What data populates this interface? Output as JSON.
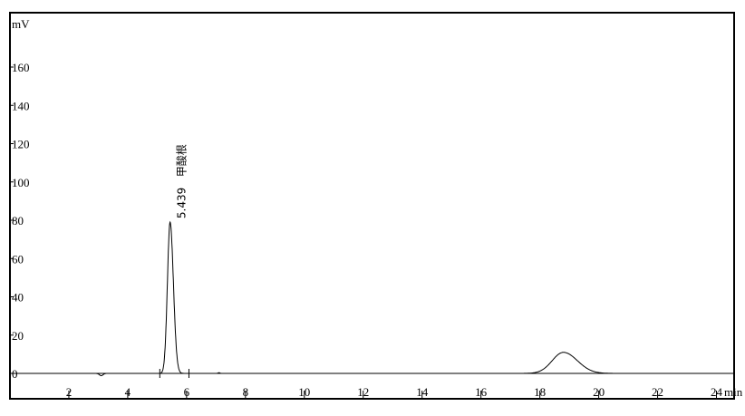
{
  "chart_data": {
    "type": "line",
    "title": "",
    "xlabel": "min",
    "ylabel": "mV",
    "xlim": [
      0,
      24.6
    ],
    "ylim": [
      0,
      172
    ],
    "x_ticks": [
      2,
      4,
      6,
      8,
      10,
      12,
      14,
      16,
      18,
      20,
      22,
      24
    ],
    "y_ticks": [
      0,
      20,
      40,
      60,
      80,
      100,
      120,
      140,
      160
    ],
    "grid": false,
    "line_color": "#000000",
    "peaks": [
      {
        "retention_time": 5.439,
        "height": 79,
        "width": 0.09,
        "label": "5.439",
        "name": "甲酸根",
        "integration_marks": [
          5.09,
          6.08
        ]
      },
      {
        "retention_time": 18.8,
        "height": 11,
        "width": 0.38,
        "label": "",
        "name": ""
      }
    ],
    "baseline_features": [
      {
        "x": 3.1,
        "height": -1.2,
        "width": 0.06
      },
      {
        "x": 7.1,
        "height": 0.4,
        "width": 0.03
      }
    ]
  }
}
